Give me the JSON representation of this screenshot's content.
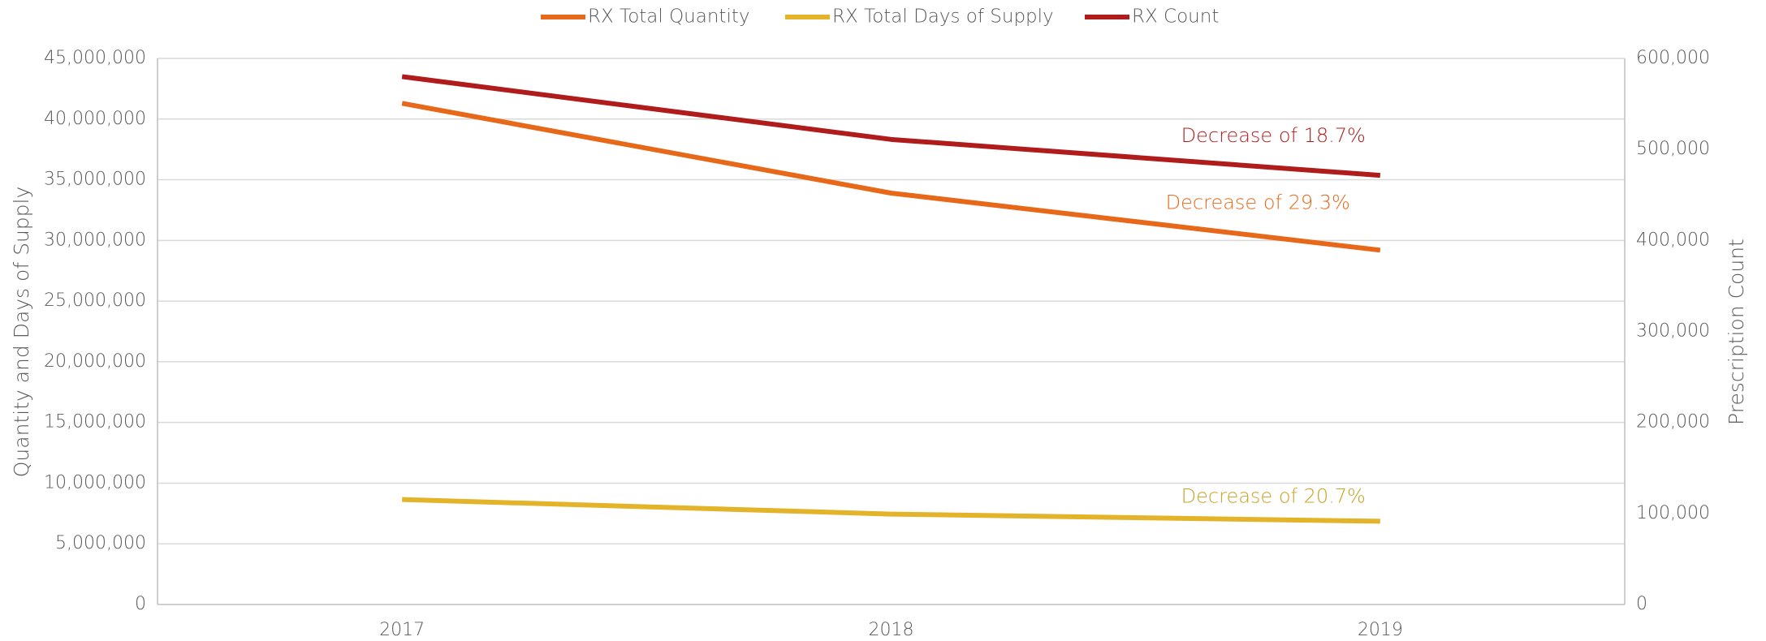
{
  "chart_data": {
    "type": "line",
    "categories": [
      "2017",
      "2018",
      "2019"
    ],
    "series": [
      {
        "name": "RX Total Quantity",
        "color": "#e8681a",
        "values": [
          41300000,
          33900000,
          29200000
        ]
      },
      {
        "name": "RX Total Days of Supply",
        "color": "#e3b32a",
        "values": [
          8650000,
          7450000,
          6860000
        ]
      },
      {
        "name": "RX Count",
        "color": "#b01c1c",
        "axis": "y2",
        "values": [
          580000,
          511000,
          471500
        ]
      }
    ],
    "ylabel": "Quantity and Days of Supply",
    "y2label": "Prescription Count",
    "ylim": [
      0,
      45000000
    ],
    "yticks": [
      0,
      {
        "value": 5000000,
        "label": "5,000,000"
      },
      {
        "value": 10000000,
        "label": "10,000,000"
      },
      {
        "value": 15000000,
        "label": "15,000,000"
      },
      {
        "value": 20000000,
        "label": "20,000,000"
      },
      {
        "value": 25000000,
        "label": "25,000,000"
      },
      {
        "value": 30000000,
        "label": "30,000,000"
      },
      {
        "value": 35000000,
        "label": "35,000,000"
      },
      {
        "value": 40000000,
        "label": "40,000,000"
      },
      {
        "value": 45000000,
        "label": "45,000,000"
      }
    ],
    "y2lim": [
      0,
      600000
    ],
    "y2ticks": [
      0,
      {
        "value": 100000,
        "label": "100,000"
      },
      {
        "value": 200000,
        "label": "200,000"
      },
      {
        "value": 300000,
        "label": "300,000"
      },
      {
        "value": 400000,
        "label": "400,000"
      },
      {
        "value": 500000,
        "label": "500,000"
      },
      {
        "value": 600000,
        "label": "600,000"
      }
    ],
    "grid": true,
    "legend": "top",
    "annotations": [
      {
        "text": "Decrease of 18.7%",
        "color": "#b01c1c"
      },
      {
        "text": "Decrease of 29.3%",
        "color": "#e8681a"
      },
      {
        "text": "Decrease of 20.7%",
        "color": "#c9a020"
      }
    ]
  }
}
